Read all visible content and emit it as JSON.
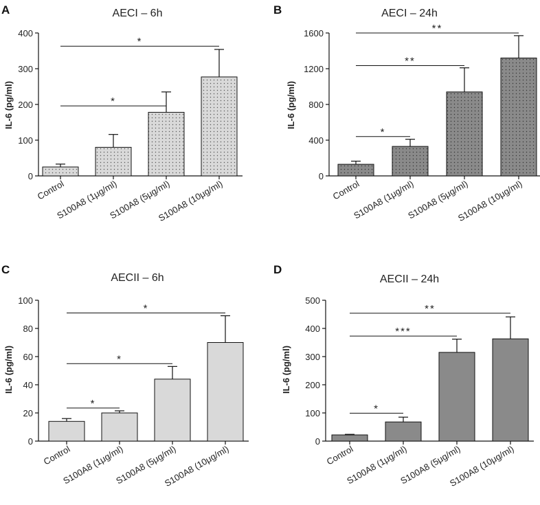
{
  "colors": {
    "light_fill": "#d9d9d9",
    "dark_fill": "#8a8a8a",
    "stroke": "#111111",
    "text": "#222222"
  },
  "chart_data": [
    {
      "type": "bar",
      "panel": "A",
      "title": "AECI – 6h",
      "ylabel": "IL-6 (pg/ml)",
      "ylim": [
        0,
        400
      ],
      "yticks": [
        "0",
        "100",
        "200",
        "300",
        "400"
      ],
      "categories": [
        "Control",
        "S100A8 (1μg/ml)",
        "S100A8 (5μg/ml)",
        "S100A8 (10μg/ml)"
      ],
      "values": [
        25,
        80,
        178,
        277
      ],
      "errors": [
        8,
        36,
        57,
        77
      ],
      "fill": "light",
      "pattern": true,
      "significance": [
        {
          "from": 0,
          "to": 2,
          "label": "*",
          "y": 196
        },
        {
          "from": 0,
          "to": 3,
          "label": "*",
          "y": 363
        }
      ]
    },
    {
      "type": "bar",
      "panel": "B",
      "title": "AECI – 24h",
      "ylabel": "IL-6 (pg/ml)",
      "ylim": [
        0,
        1600
      ],
      "yticks": [
        "0",
        "400",
        "800",
        "1200",
        "1600"
      ],
      "categories": [
        "Control",
        "S100A8 (1μg/ml)",
        "S100A8 (5μg/ml)",
        "S100A8 (10μg/ml)"
      ],
      "values": [
        130,
        330,
        940,
        1320
      ],
      "errors": [
        35,
        80,
        270,
        250
      ],
      "fill": "dark",
      "pattern": true,
      "significance": [
        {
          "from": 0,
          "to": 1,
          "label": "*",
          "y": 440
        },
        {
          "from": 0,
          "to": 2,
          "label": "**",
          "y": 1235
        },
        {
          "from": 0,
          "to": 3,
          "label": "**",
          "y": 1600
        }
      ]
    },
    {
      "type": "bar",
      "panel": "C",
      "title": "AECII – 6h",
      "ylabel": "IL-6 (pg/ml)",
      "ylim": [
        0,
        100
      ],
      "yticks": [
        "0",
        "20",
        "40",
        "60",
        "80",
        "100"
      ],
      "categories": [
        "Control",
        "S100A8 (1μg/ml)",
        "S100A8 (5μg/ml)",
        "S100A8 (10μg/ml)"
      ],
      "values": [
        14,
        20,
        44,
        70
      ],
      "errors": [
        2,
        1.5,
        9,
        19
      ],
      "fill": "light",
      "pattern": false,
      "significance": [
        {
          "from": 0,
          "to": 1,
          "label": "*",
          "y": 23.5
        },
        {
          "from": 0,
          "to": 2,
          "label": "*",
          "y": 55
        },
        {
          "from": 0,
          "to": 3,
          "label": "*",
          "y": 91
        }
      ]
    },
    {
      "type": "bar",
      "panel": "D",
      "title": "AECII – 24h",
      "ylabel": "IL-6 (pg/ml)",
      "ylim": [
        0,
        500
      ],
      "yticks": [
        "0",
        "100",
        "200",
        "300",
        "400",
        "500"
      ],
      "categories": [
        "Control",
        "S100A8 (1μg/ml)",
        "S100A8 (5μg/ml)",
        "S100A8 (10μg/ml)"
      ],
      "values": [
        22,
        68,
        315,
        363
      ],
      "errors": [
        2,
        17,
        47,
        78
      ],
      "fill": "dark",
      "pattern": false,
      "significance": [
        {
          "from": 0,
          "to": 1,
          "label": "*",
          "y": 99
        },
        {
          "from": 0,
          "to": 2,
          "label": "***",
          "y": 373
        },
        {
          "from": 0,
          "to": 3,
          "label": "**",
          "y": 454
        }
      ]
    }
  ]
}
